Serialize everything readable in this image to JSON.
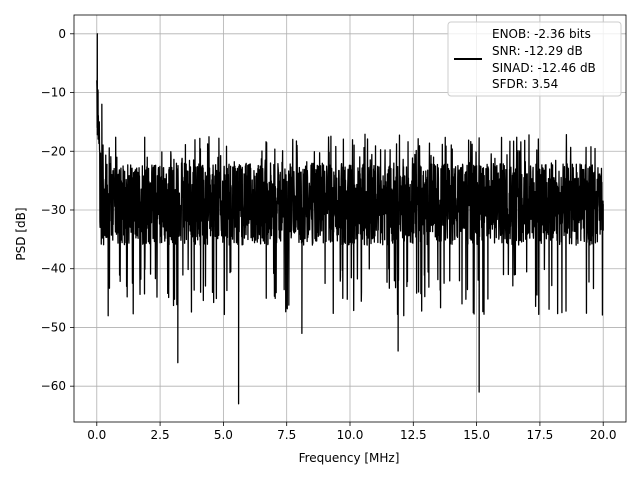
{
  "chart_data": {
    "type": "line",
    "xlabel": "Frequency [MHz]",
    "ylabel": "PSD [dB]",
    "xlim": [
      -0.9,
      20.9
    ],
    "ylim": [
      -66.1,
      3.2
    ],
    "x_ticks": [
      0.0,
      2.5,
      5.0,
      7.5,
      10.0,
      12.5,
      15.0,
      17.5,
      20.0
    ],
    "x_tick_labels": [
      "0.0",
      "2.5",
      "5.0",
      "7.5",
      "10.0",
      "12.5",
      "15.0",
      "17.5",
      "20.0"
    ],
    "y_ticks": [
      0,
      -10,
      -20,
      -30,
      -40,
      -50,
      -60
    ],
    "y_tick_labels": [
      "0",
      "−10",
      "−20",
      "−30",
      "−40",
      "−50",
      "−60"
    ],
    "grid": true,
    "legend_position": "top-right",
    "series": [
      {
        "color": "#000000",
        "description_points": {
          "x": [
            0.0,
            0.02,
            0.05,
            0.1,
            0.2,
            0.4,
            0.45,
            1.0,
            2.0,
            3.2,
            4.0,
            5.0,
            5.6,
            7.0,
            8.1,
            10.0,
            11.9,
            13.0,
            14.0,
            15.1,
            16.5,
            18.0,
            19.0,
            20.0
          ],
          "y": [
            -8,
            0,
            -10,
            -15,
            -12,
            -34,
            -48,
            -28,
            -30,
            -56,
            -28,
            -30,
            -63,
            -28,
            -51,
            -30,
            -54,
            -28,
            -30,
            -61,
            -28,
            -30,
            -30,
            -29
          ]
        },
        "noise_floor_center": -29,
        "noise_upper": -17,
        "noise_lower": -40
      }
    ],
    "legend_lines": [
      "ENOB: -2.36 bits",
      "SNR: -12.29 dB",
      "SINAD: -12.46 dB",
      "SFDR: 3.54"
    ]
  },
  "colors": {
    "line": "#000000",
    "grid": "#b0b0b0",
    "axes": "#000000",
    "background": "#ffffff"
  }
}
